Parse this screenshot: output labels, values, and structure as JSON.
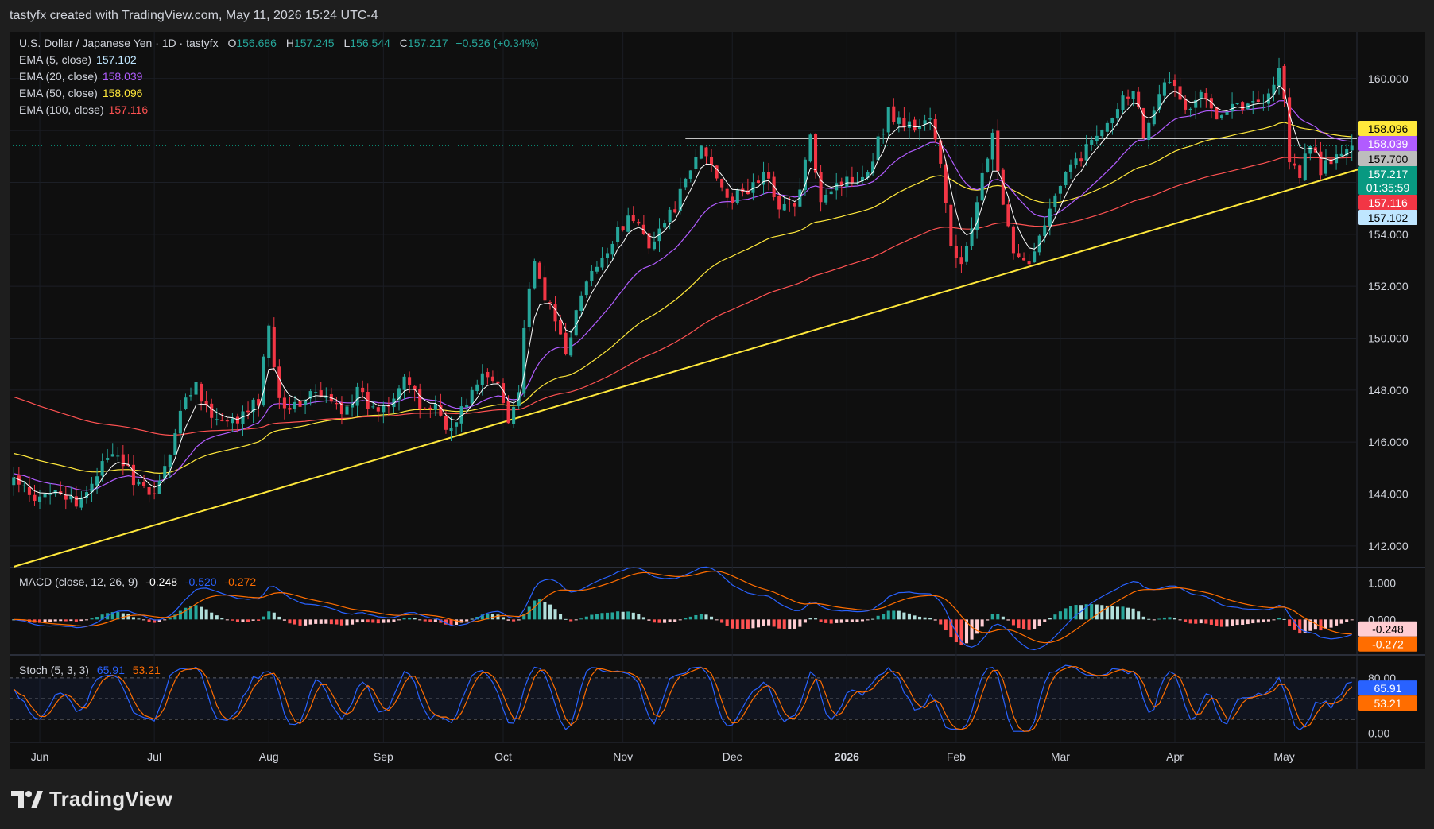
{
  "header": {
    "title": "tastyfx created with TradingView.com, May 11, 2026 15:24 UTC-4"
  },
  "footer": {
    "brand": "TradingView",
    "logo_icon": "tradingview-logo-icon"
  },
  "symbol": {
    "name": "U.S. Dollar / Japanese Yen · 1D · tastyfx",
    "o_label": "O",
    "o": "156.686",
    "h_label": "H",
    "h": "157.245",
    "l_label": "L",
    "l": "156.544",
    "c_label": "C",
    "c": "157.217",
    "change": "+0.526 (+0.34%)"
  },
  "ema_legend": [
    {
      "label": "EMA (5, close)",
      "value": "157.102",
      "color": "#ffffff"
    },
    {
      "label": "EMA (20, close)",
      "value": "158.039",
      "color": "#b15cff"
    },
    {
      "label": "EMA (50, close)",
      "value": "158.096",
      "color": "#ffe83b"
    },
    {
      "label": "EMA (100, close)",
      "value": "157.116",
      "color": "#ff5252"
    }
  ],
  "macd_legend": {
    "label": "MACD (close, 12, 26, 9)",
    "hist": "-0.248",
    "macd": "-0.520",
    "signal": "-0.272"
  },
  "stoch_legend": {
    "label": "Stoch (5, 3, 3)",
    "k": "65.91",
    "d": "53.21"
  },
  "colors": {
    "up": "#26a69a",
    "down": "#f23645",
    "ema5": "#ffffff",
    "ema20": "#b15cff",
    "ema50": "#ffe83b",
    "ema100": "#ff5252",
    "trendline": "#ffe83b",
    "resistance": "#ffffff",
    "macd": "#2962ff",
    "signal": "#ff6d00"
  },
  "price_badges": [
    {
      "text": "158.096",
      "value": 158.096,
      "bg": "#ffe83b",
      "fg": "#000000"
    },
    {
      "text": "158.039",
      "value": 158.039,
      "bg": "#b15cff",
      "fg": "#ffffff"
    },
    {
      "text": "157.700",
      "value": 157.7,
      "bg": "#bdbdbd",
      "fg": "#000000"
    },
    {
      "text": "157.217",
      "value": 157.217,
      "bg": "#089981",
      "fg": "#ffffff",
      "sub": "01:35:59"
    },
    {
      "text": "157.116",
      "value": 157.116,
      "bg": "#f23645",
      "fg": "#ffffff"
    },
    {
      "text": "157.102",
      "value": 157.102,
      "bg": "#bfe6ff",
      "fg": "#000000"
    }
  ],
  "macd_badges": [
    {
      "text": "-0.248",
      "value": -0.248,
      "bg": "#ffcdd2",
      "fg": "#000000"
    },
    {
      "text": "-0.272",
      "value": -0.272,
      "bg": "#ff6d00",
      "fg": "#ffffff"
    }
  ],
  "stoch_badges": [
    {
      "text": "65.91",
      "value": 65.91,
      "bg": "#2962ff",
      "fg": "#ffffff"
    },
    {
      "text": "53.21",
      "value": 53.21,
      "bg": "#ff6d00",
      "fg": "#ffffff"
    }
  ],
  "chart_data": {
    "type": "candlestick",
    "title": "U.S. Dollar / Japanese Yen · 1D · tastyfx",
    "price_axis": {
      "ticks": [
        142,
        144,
        146,
        148,
        150,
        152,
        154,
        156,
        158,
        160
      ],
      "tick_labels": [
        "142.000",
        "144.000",
        "146.000",
        "148.000",
        "150.000",
        "152.000",
        "154.000",
        "156.000",
        "158.000",
        "160.000"
      ],
      "ylim": [
        141.2,
        161.8
      ]
    },
    "macd_axis": {
      "ticks": [
        1.0,
        0.0
      ],
      "tick_labels": [
        "1.000",
        "0.000"
      ],
      "ylim": [
        -0.95,
        1.4
      ]
    },
    "stoch_axis": {
      "ticks": [
        80,
        0
      ],
      "tick_labels": [
        "80.00",
        "0.00"
      ],
      "ylim": [
        -12,
        112
      ],
      "bands": [
        20,
        50,
        80
      ]
    },
    "x_labels": [
      "Jun",
      "Jul",
      "Aug",
      "Sep",
      "Oct",
      "Nov",
      "Dec",
      "2026",
      "Feb",
      "Mar",
      "Apr",
      "May"
    ],
    "x_label_bar": [
      5,
      27,
      49,
      71,
      94,
      117,
      138,
      160,
      181,
      201,
      223,
      244
    ],
    "bar_count": 258,
    "anchors": [
      [
        0,
        144.6
      ],
      [
        4,
        143.6
      ],
      [
        8,
        144.4
      ],
      [
        12,
        143.4
      ],
      [
        16,
        144.9
      ],
      [
        20,
        145.5
      ],
      [
        23,
        144.6
      ],
      [
        26,
        143.8
      ],
      [
        29,
        145.0
      ],
      [
        32,
        147.2
      ],
      [
        35,
        148.3
      ],
      [
        38,
        146.9
      ],
      [
        41,
        146.6
      ],
      [
        44,
        147.0
      ],
      [
        47,
        147.6
      ],
      [
        49,
        150.6
      ],
      [
        51,
        147.7
      ],
      [
        54,
        147.3
      ],
      [
        57,
        147.9
      ],
      [
        60,
        147.6
      ],
      [
        63,
        147.3
      ],
      [
        66,
        147.9
      ],
      [
        69,
        147.2
      ],
      [
        72,
        147.6
      ],
      [
        75,
        148.6
      ],
      [
        78,
        147.3
      ],
      [
        81,
        147.4
      ],
      [
        84,
        146.4
      ],
      [
        87,
        147.6
      ],
      [
        90,
        148.5
      ],
      [
        93,
        148.3
      ],
      [
        95,
        147.0
      ],
      [
        97,
        147.9
      ],
      [
        98,
        150.5
      ],
      [
        100,
        152.8
      ],
      [
        103,
        151.1
      ],
      [
        106,
        149.6
      ],
      [
        110,
        152.2
      ],
      [
        113,
        152.9
      ],
      [
        116,
        154.3
      ],
      [
        119,
        154.6
      ],
      [
        122,
        153.7
      ],
      [
        126,
        154.7
      ],
      [
        129,
        155.9
      ],
      [
        132,
        157.4
      ],
      [
        135,
        156.3
      ],
      [
        138,
        155.3
      ],
      [
        141,
        155.7
      ],
      [
        144,
        156.3
      ],
      [
        147,
        155.2
      ],
      [
        150,
        155.0
      ],
      [
        153,
        157.6
      ],
      [
        155,
        155.5
      ],
      [
        158,
        156.0
      ],
      [
        161,
        156.1
      ],
      [
        164,
        156.5
      ],
      [
        168,
        158.7
      ],
      [
        170,
        158.4
      ],
      [
        173,
        158.1
      ],
      [
        176,
        158.5
      ],
      [
        178,
        156.6
      ],
      [
        180,
        153.6
      ],
      [
        182,
        152.8
      ],
      [
        184,
        154.0
      ],
      [
        186,
        156.6
      ],
      [
        188,
        157.7
      ],
      [
        190,
        155.1
      ],
      [
        192,
        153.1
      ],
      [
        194,
        152.8
      ],
      [
        196,
        153.4
      ],
      [
        198,
        154.6
      ],
      [
        200,
        155.4
      ],
      [
        203,
        156.6
      ],
      [
        206,
        157.3
      ],
      [
        209,
        158.2
      ],
      [
        212,
        159.0
      ],
      [
        215,
        159.7
      ],
      [
        217,
        157.9
      ],
      [
        220,
        159.6
      ],
      [
        223,
        159.8
      ],
      [
        225,
        158.7
      ],
      [
        228,
        159.3
      ],
      [
        231,
        158.7
      ],
      [
        234,
        159.1
      ],
      [
        237,
        158.9
      ],
      [
        240,
        159.3
      ],
      [
        242,
        159.8
      ],
      [
        243,
        160.3
      ],
      [
        244,
        159.4
      ],
      [
        245,
        156.7
      ],
      [
        247,
        156.2
      ],
      [
        249,
        157.6
      ],
      [
        251,
        156.5
      ],
      [
        253,
        156.7
      ],
      [
        255,
        157.2
      ]
    ],
    "trendline": {
      "start": {
        "bar": 0,
        "value": 141.2
      },
      "end": {
        "bar": 257,
        "value": 156.1
      }
    },
    "resistance": {
      "start_bar": 129,
      "value": 157.7
    }
  }
}
